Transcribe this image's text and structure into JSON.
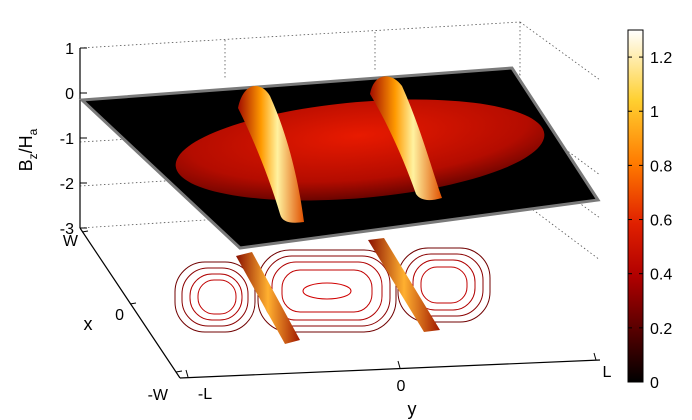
{
  "chart_data": {
    "type": "surface",
    "title": "",
    "zlabel_main": "B",
    "zlabel_sub1": "z",
    "zlabel_mid": "/H",
    "zlabel_sub2": "a",
    "xlabel": "x",
    "ylabel": "y",
    "z_ticks": [
      "1",
      "0",
      "-1",
      "-2",
      "-3"
    ],
    "z_range": [
      -3,
      1
    ],
    "x_ticks": [
      "W",
      "0",
      "-W"
    ],
    "y_ticks": [
      "-L",
      "0",
      "L"
    ],
    "grid": true,
    "colormap": "hot",
    "colorbar": {
      "placement": "right",
      "range": [
        0,
        1.3
      ],
      "ticks": [
        "1.2",
        "1",
        "0.8",
        "0.6",
        "0.4",
        "0.2",
        "0"
      ]
    },
    "plane_value": 0,
    "features": {
      "central_region": "red, roughly 0.5",
      "edge_peaks_left": "near 1.3",
      "edge_peaks_right": "near 1.3"
    },
    "contour_projection": true
  }
}
